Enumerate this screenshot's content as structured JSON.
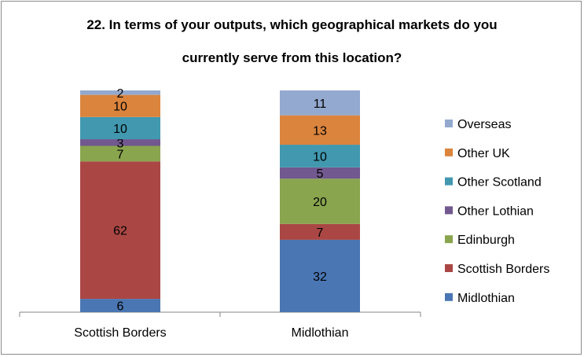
{
  "chart_data": {
    "type": "bar",
    "stacked": true,
    "title_line1": "22.  In terms of your outputs, which geographical markets do you",
    "title_line2": "currently serve from this location?",
    "categories": [
      "Scottish Borders",
      "Midlothian"
    ],
    "series": [
      {
        "name": "Midlothian",
        "color": "#4a76b3",
        "values": [
          6,
          32
        ]
      },
      {
        "name": "Scottish Borders",
        "color": "#aa4744",
        "values": [
          62,
          7
        ]
      },
      {
        "name": "Edinburgh",
        "color": "#89a54e",
        "values": [
          7,
          20
        ]
      },
      {
        "name": "Other Lothian",
        "color": "#71588f",
        "values": [
          3,
          5
        ]
      },
      {
        "name": "Other Scotland",
        "color": "#4198af",
        "values": [
          10,
          10
        ]
      },
      {
        "name": "Other UK",
        "color": "#db843d",
        "values": [
          10,
          13
        ]
      },
      {
        "name": "Overseas",
        "color": "#93a9cf",
        "values": [
          2,
          11
        ]
      }
    ],
    "legend_position": "right",
    "grid": false
  }
}
